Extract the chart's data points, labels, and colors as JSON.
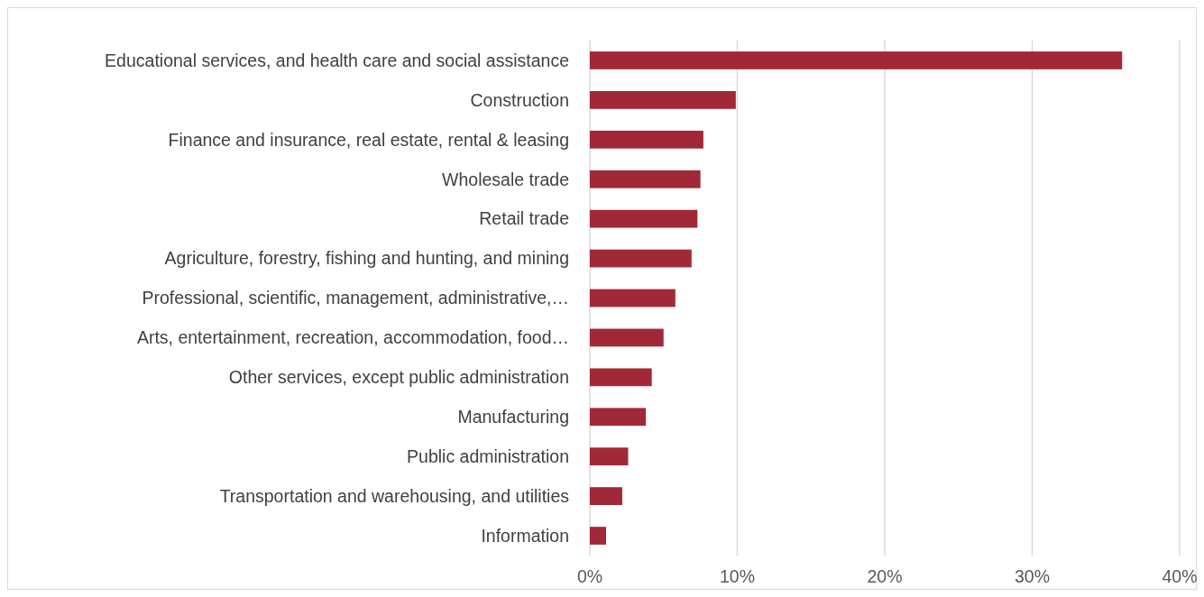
{
  "chart_data": {
    "type": "bar",
    "orientation": "horizontal",
    "categories": [
      "Educational services, and health care and social assistance",
      "Construction",
      "Finance and insurance, real estate, rental & leasing",
      "Wholesale trade",
      "Retail trade",
      "Agriculture, forestry, fishing and hunting, and mining",
      "Professional, scientific, management, administrative,…",
      "Arts, entertainment, recreation, accommodation, food…",
      "Other services, except public administration",
      "Manufacturing",
      "Public administration",
      "Transportation and warehousing, and utilities",
      "Information"
    ],
    "values": [
      36.1,
      9.9,
      7.7,
      7.5,
      7.3,
      6.9,
      5.8,
      5.0,
      4.2,
      3.8,
      2.6,
      2.2,
      1.1
    ],
    "color": "#a12937",
    "xlim": [
      0,
      40
    ],
    "xticks": [
      {
        "value": 0,
        "label": "0%"
      },
      {
        "value": 10,
        "label": "10%"
      },
      {
        "value": 20,
        "label": "20%"
      },
      {
        "value": 30,
        "label": "30%"
      },
      {
        "value": 40,
        "label": "40%"
      }
    ],
    "grid": "x"
  }
}
